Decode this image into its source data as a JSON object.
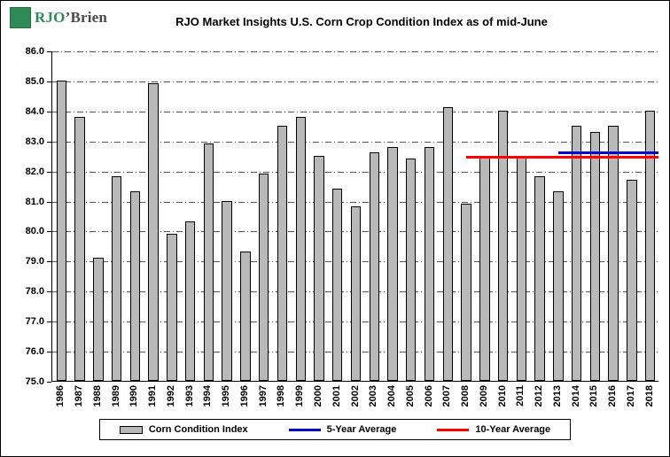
{
  "logo": {
    "name_rjo": "RJO",
    "name_brien": "’Brien",
    "brand_green": "#2e8b57"
  },
  "chart_data": {
    "type": "bar",
    "title": "RJO Market Insights U.S. Corn Crop Condition Index as of mid-June",
    "categories": [
      "1986",
      "1987",
      "1988",
      "1989",
      "1990",
      "1991",
      "1992",
      "1993",
      "1994",
      "1995",
      "1996",
      "1997",
      "1998",
      "1999",
      "2000",
      "2001",
      "2002",
      "2003",
      "2004",
      "2005",
      "2006",
      "2007",
      "2008",
      "2009",
      "2010",
      "2011",
      "2012",
      "2013",
      "2014",
      "2015",
      "2016",
      "2017",
      "2018"
    ],
    "series": [
      {
        "id": "corn-condition-index",
        "name": "Corn Condition Index",
        "type": "bar",
        "color": "#b9b9b9",
        "border_color": "#000000",
        "values": [
          85.0,
          83.8,
          79.1,
          81.8,
          81.3,
          84.9,
          79.9,
          80.3,
          82.9,
          81.0,
          79.3,
          81.9,
          83.5,
          83.8,
          82.5,
          81.4,
          80.8,
          82.6,
          82.8,
          82.4,
          82.8,
          84.1,
          80.9,
          82.5,
          84.0,
          82.5,
          81.8,
          81.3,
          83.5,
          83.3,
          83.5,
          81.7,
          84.0
        ]
      },
      {
        "id": "five-year-average-line",
        "name": "5-Year Average",
        "type": "line",
        "color": "#0000cc",
        "value": 82.65,
        "start_category": "2013",
        "end_category": "2018"
      },
      {
        "id": "ten-year-average-line",
        "name": "10-Year Average",
        "type": "line",
        "color": "#ff0000",
        "value": 82.5,
        "start_category": "2008",
        "end_category": "2018"
      }
    ],
    "ylim": [
      75.0,
      86.0
    ],
    "ytick_step": 1.0,
    "ytick_labels": [
      "75.0",
      "76.0",
      "77.0",
      "78.0",
      "79.0",
      "80.0",
      "81.0",
      "82.0",
      "83.0",
      "84.0",
      "85.0",
      "86.0"
    ],
    "xlabel": "",
    "ylabel": "",
    "grid": "horizontal dash-dot",
    "legend_position": "bottom",
    "legend": [
      {
        "label": "Corn Condition Index",
        "swatch": "bar",
        "color": "#b9b9b9"
      },
      {
        "label": "5-Year Average",
        "swatch": "line",
        "color": "#0000cc"
      },
      {
        "label": "10-Year Average",
        "swatch": "line",
        "color": "#ff0000"
      }
    ]
  }
}
